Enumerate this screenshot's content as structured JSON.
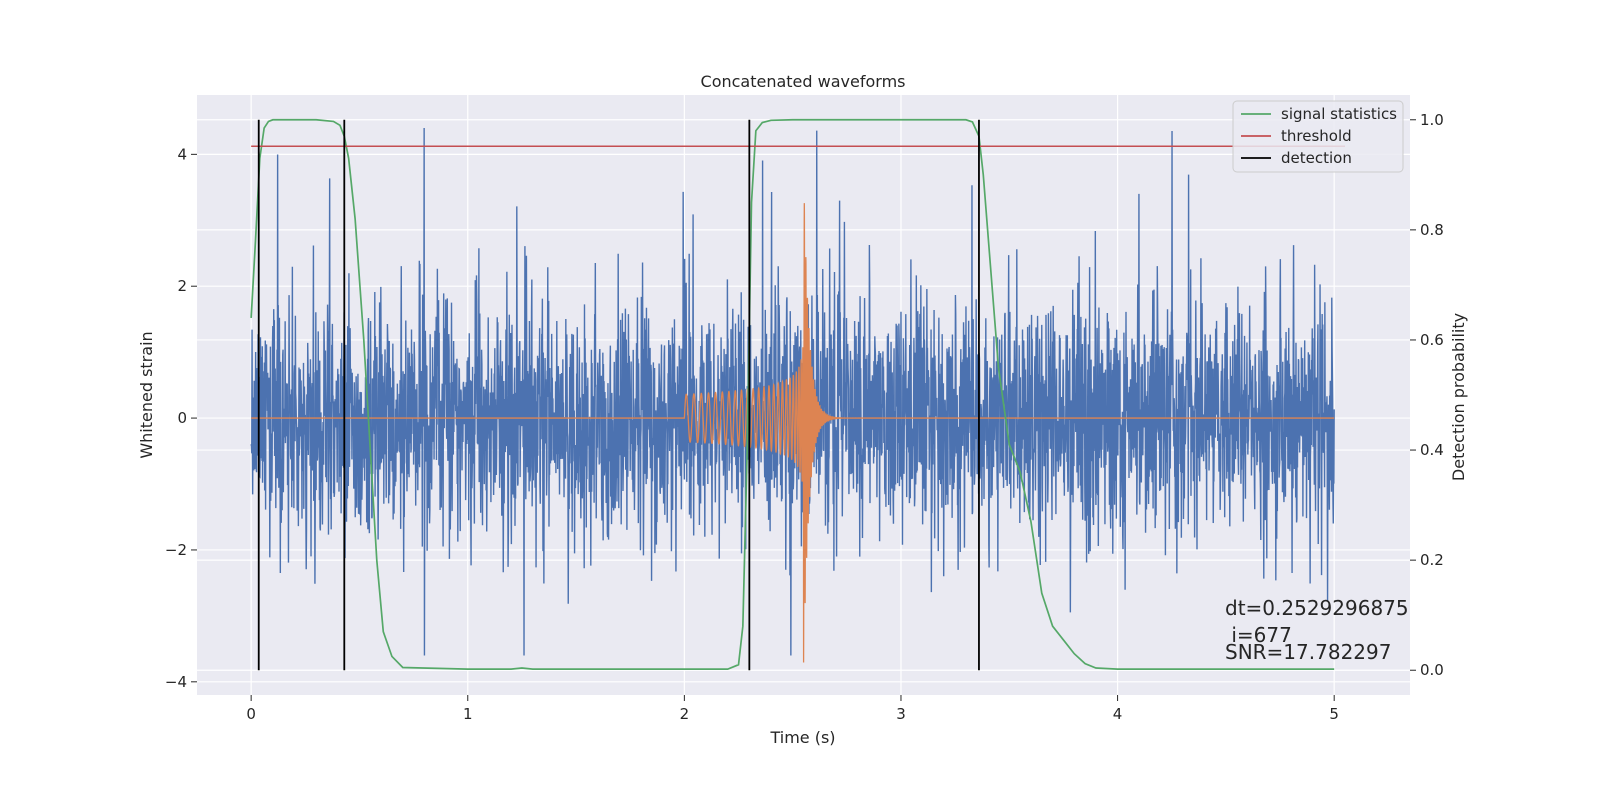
{
  "chart_data": {
    "type": "line",
    "title": "Concatenated waveforms",
    "xlabel": "Time (s)",
    "ylabel_left": "Whitened strain",
    "ylabel_right": "Detection probability",
    "xlim": [
      -0.25,
      5.35
    ],
    "ylim_left": [
      -4.2,
      4.9
    ],
    "ylim_right": [
      -0.045,
      1.045
    ],
    "x_ticks": [
      0,
      1,
      2,
      3,
      4,
      5
    ],
    "x_tick_labels": [
      "0",
      "1",
      "2",
      "3",
      "4",
      "5"
    ],
    "y_left_ticks": [
      -4,
      -2,
      0,
      2,
      4
    ],
    "y_left_tick_labels": [
      "−4",
      "−2",
      "0",
      "2",
      "4"
    ],
    "y_right_ticks": [
      0.0,
      0.2,
      0.4,
      0.6,
      0.8,
      1.0
    ],
    "y_right_tick_labels": [
      "0.0",
      "0.2",
      "0.4",
      "0.6",
      "0.8",
      "1.0"
    ],
    "grid": true,
    "legend_position": "top-right",
    "legend": [
      {
        "label": "signal statistics",
        "color": "#55a868"
      },
      {
        "label": "threshold",
        "color": "#c44e52"
      },
      {
        "label": "detection",
        "color": "#000000"
      }
    ],
    "series": [
      {
        "axis": "left",
        "color": "#4c72b0",
        "kind": "noise",
        "x_range": [
          0,
          5
        ],
        "std": 0.85
      },
      {
        "axis": "left",
        "color": "#dd8452",
        "kind": "chirp",
        "start": 2.0,
        "merger": 2.55,
        "end": 3.0,
        "peak_amplitude": 3.8
      },
      {
        "name": "signal statistics",
        "axis": "right",
        "color": "#55a868",
        "x": [
          0.0,
          0.02,
          0.04,
          0.06,
          0.08,
          0.1,
          0.15,
          0.2,
          0.3,
          0.38,
          0.41,
          0.43,
          0.45,
          0.48,
          0.52,
          0.55,
          0.58,
          0.61,
          0.65,
          0.7,
          1.0,
          1.2,
          1.25,
          1.3,
          1.5,
          2.0,
          2.2,
          2.25,
          2.27,
          2.29,
          2.31,
          2.33,
          2.36,
          2.4,
          2.5,
          3.0,
          3.3,
          3.33,
          3.36,
          3.38,
          3.41,
          3.45,
          3.5,
          3.55,
          3.6,
          3.65,
          3.7,
          3.75,
          3.8,
          3.85,
          3.9,
          4.0,
          4.5,
          5.0
        ],
        "values": [
          0.64,
          0.78,
          0.93,
          0.985,
          0.997,
          1.0,
          1.0,
          1.0,
          1.0,
          0.997,
          0.99,
          0.97,
          0.93,
          0.82,
          0.6,
          0.4,
          0.2,
          0.07,
          0.025,
          0.005,
          0.002,
          0.002,
          0.004,
          0.002,
          0.002,
          0.002,
          0.002,
          0.01,
          0.08,
          0.4,
          0.85,
          0.98,
          0.995,
          0.999,
          1.0,
          1.0,
          1.0,
          0.996,
          0.97,
          0.9,
          0.75,
          0.55,
          0.41,
          0.36,
          0.27,
          0.14,
          0.08,
          0.055,
          0.03,
          0.012,
          0.004,
          0.002,
          0.002,
          0.002
        ]
      },
      {
        "name": "threshold",
        "axis": "right",
        "color": "#c44e52",
        "x": [
          0.0,
          5.05
        ],
        "values": [
          0.952,
          0.952
        ]
      }
    ],
    "detections": {
      "color": "#000000",
      "x": [
        0.035,
        0.43,
        2.3,
        3.36
      ],
      "y_range": [
        0.0,
        1.0
      ]
    },
    "annotations": [
      "dt=0.2529296875",
      " i=677",
      "SNR=17.782297"
    ]
  }
}
